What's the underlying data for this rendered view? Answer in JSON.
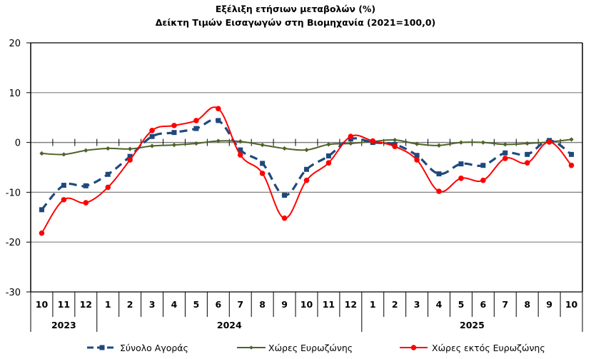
{
  "chart_data": {
    "type": "line",
    "title": "Εξέλιξη ετήσιων μεταβολών (%)",
    "subtitle": "Δείκτη Τιμών Εισαγωγών στη Βιομηχανία (2021=100,0)",
    "xlabel": "",
    "ylabel": "",
    "ylim": [
      -30,
      20
    ],
    "yticks": [
      "20",
      "10",
      "0",
      "-10",
      "-20",
      "-30"
    ],
    "ytick_values": [
      20,
      10,
      0,
      -10,
      -20,
      -30
    ],
    "categories": [
      "10",
      "11",
      "12",
      "1",
      "2",
      "3",
      "4",
      "5",
      "6",
      "7",
      "8",
      "9",
      "10",
      "11",
      "12",
      "1",
      "2",
      "3",
      "4",
      "5",
      "6",
      "7",
      "8",
      "9",
      "10"
    ],
    "year_groups": [
      {
        "label": "2023",
        "count": 3
      },
      {
        "label": "2024",
        "count": 12
      },
      {
        "label": "2025",
        "count": 10
      }
    ],
    "grid": "horizontal",
    "legend_position": "bottom",
    "series": [
      {
        "name": "Σύνολο Αγοράς",
        "color": "#1F497D",
        "style": "dashed",
        "marker": "square",
        "values": [
          -13.5,
          -8.6,
          -8.7,
          -6.4,
          -2.8,
          1.2,
          2.0,
          2.8,
          4.4,
          -1.5,
          -4.2,
          -10.6,
          -5.4,
          -2.7,
          0.7,
          0.0,
          -0.4,
          -2.6,
          -6.3,
          -4.3,
          -4.6,
          -2.1,
          -2.4,
          0.4,
          -2.4
        ]
      },
      {
        "name": "Χώρες Ευρωζώνης",
        "color": "#4F6228",
        "style": "solid",
        "marker": "diamond",
        "values": [
          -2.2,
          -2.4,
          -1.6,
          -1.2,
          -1.3,
          -0.7,
          -0.5,
          -0.2,
          0.3,
          0.2,
          -0.5,
          -1.2,
          -1.5,
          -0.4,
          -0.2,
          0.2,
          0.5,
          -0.3,
          -0.6,
          0.0,
          0.0,
          -0.4,
          -0.2,
          0.1,
          0.6
        ]
      },
      {
        "name": "Χώρες εκτός Ευρωζώνης",
        "color": "#FF0000",
        "style": "solid",
        "marker": "circle",
        "values": [
          -18.2,
          -11.5,
          -12.1,
          -9.0,
          -3.5,
          2.4,
          3.4,
          4.4,
          6.8,
          -2.5,
          -6.2,
          -15.2,
          -7.6,
          -4.1,
          1.2,
          0.3,
          -0.8,
          -3.5,
          -9.8,
          -7.2,
          -7.6,
          -3.2,
          -4.1,
          0.1,
          -4.6
        ]
      }
    ]
  }
}
